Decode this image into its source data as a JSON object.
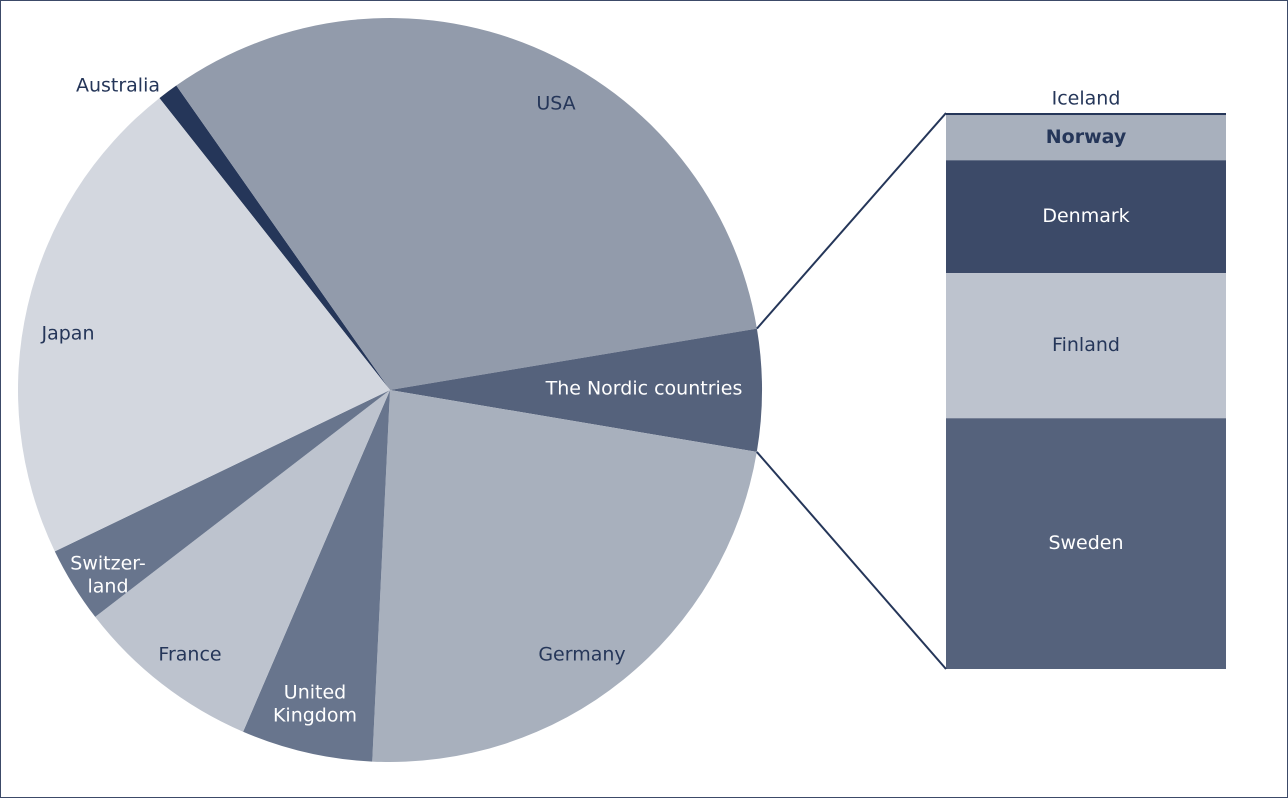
{
  "chart_data": [
    {
      "type": "pie",
      "categories": [
        "Australia",
        "USA",
        "The Nordic countries",
        "Germany",
        "United\nKingdom",
        "France",
        "Switzer-\nland",
        "Japan"
      ],
      "values": [
        0.9,
        32.1,
        5.3,
        23.1,
        5.7,
        8.1,
        3.3,
        21.5
      ],
      "colors": [
        "#253659",
        "#929bab",
        "#55627c",
        "#a8b0bd",
        "#68758d",
        "#bdc3ce",
        "#68758d",
        "#d3d7df"
      ]
    },
    {
      "type": "stacked_bar",
      "categories": [
        "Iceland",
        "Norway",
        "Denmark",
        "Finland",
        "Sweden"
      ],
      "values": [
        0.4,
        8.1,
        20.3,
        26.1,
        45.1
      ],
      "colors": [
        "#253659",
        "#a8b0bd",
        "#3c4a68",
        "#bdc3ce",
        "#55627c"
      ]
    }
  ]
}
